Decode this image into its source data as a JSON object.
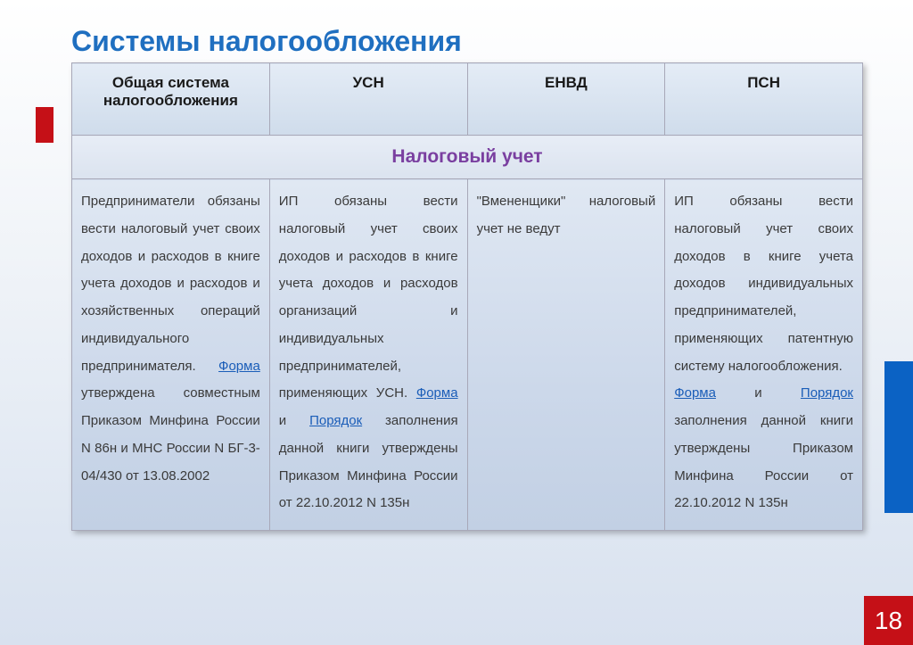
{
  "title": "Системы  налогообложения",
  "page_number": "18",
  "colors": {
    "title": "#1f6fc0",
    "section_header": "#7a3fa0",
    "link": "#1a5db8",
    "page_badge_bg": "#c51017",
    "page_badge_fg": "#ffffff",
    "red_accent": "#c51017",
    "blue_accent": "#0b62c4",
    "border": "#a8a8b8"
  },
  "table": {
    "columns": [
      "Общая система налогообложения",
      "УСН",
      "ЕНВД",
      "ПСН"
    ],
    "section_title": "Налоговый учет",
    "cells": {
      "c0_a": "Предприниматели обязаны вести налоговый учет своих доходов и расходов в книге учета доходов и расходов и хозяйственных операций индивидуального предпринимателя. ",
      "c0_link1": "Форма",
      "c0_b": " утверждена совместным Приказом Минфина России N 86н и МНС России N БГ-3-04/430 от 13.08.2002",
      "c1_a": "ИП обязаны вести налоговый учет своих доходов и расходов в книге учета доходов и расходов организаций и индивидуальных предпринимателей, применяющих УСН. ",
      "c1_link1": "Форма",
      "c1_mid": " и ",
      "c1_link2": "Порядок",
      "c1_b": " заполнения данной книги утверждены Приказом Минфина России от 22.10.2012 N 135н",
      "c2_a": "\"Вмененщики\" налоговый учет не ведут",
      "c3_a": "ИП обязаны вести налоговый учет своих доходов в книге учета доходов индивидуальных предпринимателей, применяющих патентную систему налогообложения.",
      "c3_link1": "Форма",
      "c3_mid": " и ",
      "c3_link2": "Порядок",
      "c3_b": " заполнения данной книги утверждены Приказом Минфина России от 22.10.2012 N 135н"
    }
  }
}
